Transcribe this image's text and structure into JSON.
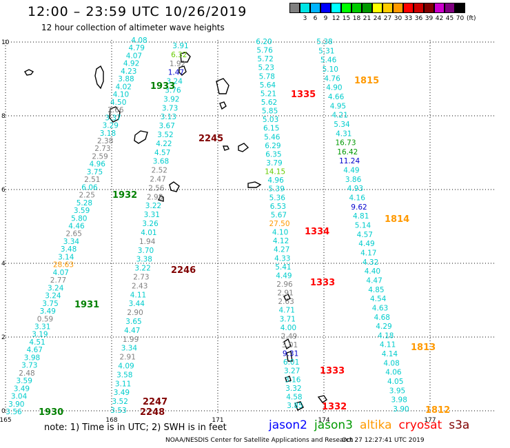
{
  "header": {
    "title": "12:00 – 23:59 UTC 10/26/2019",
    "subtitle": "12 hour collection of altimeter wave heights"
  },
  "legend": {
    "unit": "(ft)",
    "entries": [
      {
        "label": "",
        "color": "#808080"
      },
      {
        "label": "3",
        "color": "#00e5e5"
      },
      {
        "label": "6",
        "color": "#00b4ff"
      },
      {
        "label": "9",
        "color": "#0000ff"
      },
      {
        "label": "12",
        "color": "#00ffff"
      },
      {
        "label": "15",
        "color": "#00ff00"
      },
      {
        "label": "18",
        "color": "#00cc00"
      },
      {
        "label": "21",
        "color": "#009900"
      },
      {
        "label": "24",
        "color": "#ffff00"
      },
      {
        "label": "27",
        "color": "#ffcc00"
      },
      {
        "label": "30",
        "color": "#ff9900"
      },
      {
        "label": "33",
        "color": "#ff0000"
      },
      {
        "label": "36",
        "color": "#cc0000"
      },
      {
        "label": "39",
        "color": "#800000"
      },
      {
        "label": "42",
        "color": "#cc00cc"
      },
      {
        "label": "45",
        "color": "#800080"
      },
      {
        "label": "70",
        "color": "#000000"
      }
    ]
  },
  "map": {
    "x_ticks": [
      "165",
      "168",
      "171",
      "174",
      "177"
    ],
    "y_ticks": [
      "0",
      "2",
      "4",
      "6",
      "8",
      "10"
    ],
    "track_colors": {
      "g": "#808080",
      "c": "#00cccc",
      "dg": "#009900",
      "b": "#0000cc",
      "lg": "#66cc00"
    },
    "tracks": [
      {
        "name": "track-1930-1933",
        "items": [
          [
            "3.56",
            "c"
          ],
          [
            "3.90",
            "c"
          ],
          [
            "3.04",
            "c"
          ],
          [
            "3.49",
            "c"
          ],
          [
            "3.59",
            "c"
          ],
          [
            "2.48",
            "g"
          ],
          [
            "3.73",
            "c"
          ],
          [
            "3.98",
            "c"
          ],
          [
            "4.67",
            "c"
          ],
          [
            "4.51",
            "c"
          ],
          [
            "3.19",
            "c"
          ],
          [
            "3.31",
            "c"
          ],
          [
            "0.59",
            "g"
          ],
          [
            "3.49",
            "c"
          ],
          [
            "3.75",
            "c"
          ],
          [
            "3.24",
            "c"
          ],
          [
            "3.24",
            "c"
          ],
          [
            "2.77",
            "g"
          ],
          [
            "4.07",
            "c"
          ],
          [
            "28.63",
            "o"
          ],
          [
            "3.14",
            "c"
          ],
          [
            "3.48",
            "c"
          ],
          [
            "3.34",
            "c"
          ],
          [
            "2.65",
            "g"
          ],
          [
            "4.46",
            "c"
          ],
          [
            "5.80",
            "c"
          ],
          [
            "3.59",
            "c"
          ],
          [
            "5.28",
            "c"
          ],
          [
            "2.25",
            "g"
          ],
          [
            "6.06",
            "c"
          ],
          [
            "2.51",
            "g"
          ],
          [
            "3.75",
            "c"
          ],
          [
            "4.96",
            "c"
          ],
          [
            "2.59",
            "g"
          ],
          [
            "2.73",
            "g"
          ],
          [
            "2.38",
            "g"
          ],
          [
            "3.18",
            "c"
          ],
          [
            "3.29",
            "c"
          ],
          [
            "3.37",
            "c"
          ],
          [
            "2.66",
            "g"
          ],
          [
            "4.50",
            "c"
          ],
          [
            "4.10",
            "c"
          ],
          [
            "4.02",
            "c"
          ],
          [
            "3.88",
            "c"
          ],
          [
            "4.23",
            "c"
          ],
          [
            "4.92",
            "c"
          ],
          [
            "4.07",
            "c"
          ],
          [
            "4.79",
            "c"
          ],
          [
            "4.08",
            "c"
          ]
        ]
      },
      {
        "name": "track-2245-2248",
        "items": [
          [
            "3.53",
            "c"
          ],
          [
            "3.52",
            "c"
          ],
          [
            "3.49",
            "c"
          ],
          [
            "3.11",
            "c"
          ],
          [
            "3.58",
            "c"
          ],
          [
            "4.09",
            "c"
          ],
          [
            "2.91",
            "g"
          ],
          [
            "3.34",
            "c"
          ],
          [
            "1.99",
            "g"
          ],
          [
            "4.47",
            "c"
          ],
          [
            "3.65",
            "c"
          ],
          [
            "2.90",
            "g"
          ],
          [
            "3.44",
            "c"
          ],
          [
            "4.11",
            "c"
          ],
          [
            "2.43",
            "g"
          ],
          [
            "2.73",
            "g"
          ],
          [
            "3.22",
            "c"
          ],
          [
            "3.38",
            "c"
          ],
          [
            "3.70",
            "c"
          ],
          [
            "1.94",
            "g"
          ],
          [
            "4.01",
            "c"
          ],
          [
            "3.26",
            "c"
          ],
          [
            "3.31",
            "c"
          ],
          [
            "3.22",
            "c"
          ],
          [
            "2.98",
            "g"
          ],
          [
            "2.56",
            "g"
          ],
          [
            "2.47",
            "g"
          ],
          [
            "2.52",
            "g"
          ],
          [
            "3.68",
            "c"
          ],
          [
            "4.57",
            "c"
          ],
          [
            "4.22",
            "c"
          ],
          [
            "3.52",
            "c"
          ],
          [
            "3.67",
            "c"
          ],
          [
            "3.13",
            "c"
          ],
          [
            "3.73",
            "c"
          ],
          [
            "3.92",
            "c"
          ],
          [
            "3.76",
            "c"
          ],
          [
            "3.24",
            "c"
          ],
          [
            "1.47",
            "b"
          ],
          [
            "1.92",
            "g"
          ],
          [
            "6.32",
            "lg"
          ],
          [
            "3.91",
            "c"
          ]
        ]
      },
      {
        "name": "track-1332-1335",
        "items": [
          [
            "3.85",
            "c"
          ],
          [
            "4.58",
            "c"
          ],
          [
            "3.32",
            "c"
          ],
          [
            "3.16",
            "c"
          ],
          [
            "3.27",
            "c"
          ],
          [
            "6.01",
            "c"
          ],
          [
            "9.31",
            "b"
          ],
          [
            "3.01",
            "g"
          ],
          [
            "2.49",
            "g"
          ],
          [
            "4.00",
            "c"
          ],
          [
            "3.71",
            "c"
          ],
          [
            "4.71",
            "c"
          ],
          [
            "2.63",
            "g"
          ],
          [
            "2.91",
            "g"
          ],
          [
            "2.96",
            "g"
          ],
          [
            "4.49",
            "c"
          ],
          [
            "5.41",
            "c"
          ],
          [
            "4.33",
            "c"
          ],
          [
            "4.27",
            "c"
          ],
          [
            "4.12",
            "c"
          ],
          [
            "4.10",
            "c"
          ],
          [
            "27.50",
            "o"
          ],
          [
            "5.67",
            "c"
          ],
          [
            "6.53",
            "c"
          ],
          [
            "5.36",
            "c"
          ],
          [
            "5.39",
            "c"
          ],
          [
            "4.96",
            "c"
          ],
          [
            "14.15",
            "lg"
          ],
          [
            "3.79",
            "c"
          ],
          [
            "6.35",
            "c"
          ],
          [
            "6.29",
            "c"
          ],
          [
            "5.46",
            "c"
          ],
          [
            "6.15",
            "c"
          ],
          [
            "5.03",
            "c"
          ],
          [
            "5.85",
            "c"
          ],
          [
            "5.62",
            "c"
          ],
          [
            "5.21",
            "c"
          ],
          [
            "5.64",
            "c"
          ],
          [
            "5.78",
            "c"
          ],
          [
            "5.23",
            "c"
          ],
          [
            "5.72",
            "c"
          ],
          [
            "5.76",
            "c"
          ],
          [
            "6.20",
            "c"
          ]
        ]
      },
      {
        "name": "track-1812-1815",
        "items": [
          [
            "3.90",
            "c"
          ],
          [
            "3.98",
            "c"
          ],
          [
            "3.95",
            "c"
          ],
          [
            "4.05",
            "c"
          ],
          [
            "4.06",
            "c"
          ],
          [
            "4.08",
            "c"
          ],
          [
            "4.14",
            "c"
          ],
          [
            "4.11",
            "c"
          ],
          [
            "4.18",
            "c"
          ],
          [
            "4.29",
            "c"
          ],
          [
            "4.68",
            "c"
          ],
          [
            "4.63",
            "c"
          ],
          [
            "4.54",
            "c"
          ],
          [
            "4.85",
            "c"
          ],
          [
            "4.47",
            "c"
          ],
          [
            "4.40",
            "c"
          ],
          [
            "4.32",
            "c"
          ],
          [
            "4.17",
            "c"
          ],
          [
            "4.49",
            "c"
          ],
          [
            "4.57",
            "c"
          ],
          [
            "5.14",
            "c"
          ],
          [
            "4.81",
            "c"
          ],
          [
            "9.62",
            "b"
          ],
          [
            "4.16",
            "c"
          ],
          [
            "4.93",
            "c"
          ],
          [
            "3.86",
            "c"
          ],
          [
            "4.49",
            "c"
          ],
          [
            "11.24",
            "b"
          ],
          [
            "16.42",
            "dg"
          ],
          [
            "16.73",
            "dg"
          ],
          [
            "4.31",
            "c"
          ],
          [
            "5.34",
            "c"
          ],
          [
            "4.21",
            "c"
          ],
          [
            "4.95",
            "c"
          ],
          [
            "4.66",
            "c"
          ],
          [
            "4.90",
            "c"
          ],
          [
            "4.76",
            "c"
          ],
          [
            "5.10",
            "c"
          ],
          [
            "5.46",
            "c"
          ],
          [
            "5.31",
            "c"
          ],
          [
            "5.38",
            "c"
          ]
        ]
      }
    ],
    "time_labels": [
      {
        "text": "1930",
        "color": "#008000"
      },
      {
        "text": "1931",
        "color": "#008000"
      },
      {
        "text": "1932",
        "color": "#008000"
      },
      {
        "text": "1933",
        "color": "#008000"
      },
      {
        "text": "2245",
        "color": "#800000"
      },
      {
        "text": "2246",
        "color": "#800000"
      },
      {
        "text": "2247",
        "color": "#800000"
      },
      {
        "text": "2248",
        "color": "#800000"
      },
      {
        "text": "1332",
        "color": "#ff0000"
      },
      {
        "text": "1333",
        "color": "#ff0000"
      },
      {
        "text": "1333",
        "color": "#ff0000"
      },
      {
        "text": "1334",
        "color": "#ff0000"
      },
      {
        "text": "1335",
        "color": "#ff0000"
      },
      {
        "text": "1812",
        "color": "#ff9900"
      },
      {
        "text": "1813",
        "color": "#ff9900"
      },
      {
        "text": "1814",
        "color": "#ff9900"
      },
      {
        "text": "1815",
        "color": "#ff9900"
      }
    ]
  },
  "footer": {
    "note": "note: 1) Time is in UTC; 2) SWH is in feet",
    "satellites": [
      {
        "name": "jason2",
        "color": "#0000ff"
      },
      {
        "name": "jason3",
        "color": "#009900"
      },
      {
        "name": "altika",
        "color": "#ff9900"
      },
      {
        "name": "cryosat",
        "color": "#ff0000"
      },
      {
        "name": "s3a",
        "color": "#800000"
      }
    ],
    "credit": "NOAA/NESDIS Center for Satellite Applications and Research",
    "timestamp": "Oct 27 12:27:41 UTC 2019"
  }
}
